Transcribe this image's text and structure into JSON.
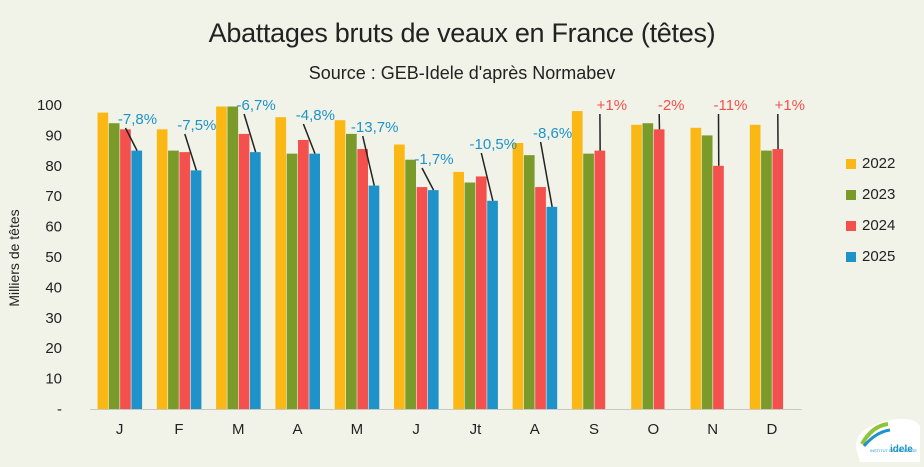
{
  "chart_data": {
    "type": "bar",
    "title": "Abattages bruts de veaux en France (têtes)",
    "subtitle": "Source : GEB-Idele d'après Normabev",
    "ylabel": "Milliers de têtes",
    "xlabel": "",
    "ylim": [
      0,
      100
    ],
    "yticks": [
      "-",
      "10",
      "20",
      "30",
      "40",
      "50",
      "60",
      "70",
      "80",
      "90",
      "100"
    ],
    "categories": [
      "J",
      "F",
      "M",
      "A",
      "M",
      "J",
      "Jt",
      "A",
      "S",
      "O",
      "N",
      "D"
    ],
    "series": [
      {
        "name": "2022",
        "color": "#fbb814",
        "values": [
          97.5,
          92,
          99.5,
          96,
          95,
          87,
          78,
          87.5,
          98,
          93.5,
          92.5,
          93.5
        ]
      },
      {
        "name": "2023",
        "color": "#7a9a2a",
        "values": [
          94,
          85,
          99.5,
          84,
          90.5,
          82,
          74.5,
          83.5,
          84,
          94,
          90,
          85
        ]
      },
      {
        "name": "2024",
        "color": "#f4504e",
        "values": [
          92,
          84.5,
          90.5,
          88.5,
          85.5,
          73,
          76.5,
          73,
          85,
          92,
          80,
          85.5
        ]
      },
      {
        "name": "2025",
        "color": "#1e93c9",
        "values": [
          85,
          78.5,
          84.5,
          84,
          73.5,
          72,
          68.5,
          66.5,
          null,
          null,
          null,
          null
        ]
      }
    ],
    "annotations": [
      {
        "text": "-7,8%",
        "color": "#1e93c9"
      },
      {
        "text": "-7,5%",
        "color": "#1e93c9"
      },
      {
        "text": "-6,7%",
        "color": "#1e93c9"
      },
      {
        "text": "-4,8%",
        "color": "#1e93c9"
      },
      {
        "text": "-13,7%",
        "color": "#1e93c9"
      },
      {
        "text": "-1,7%",
        "color": "#1e93c9"
      },
      {
        "text": "-10,5%",
        "color": "#1e93c9"
      },
      {
        "text": "-8,6%",
        "color": "#1e93c9"
      },
      {
        "text": "+1%",
        "color": "#f4504e"
      },
      {
        "text": "-2%",
        "color": "#f4504e"
      },
      {
        "text": "-11%",
        "color": "#f4504e"
      },
      {
        "text": "+1%",
        "color": "#f4504e"
      }
    ],
    "legend_position": "right",
    "grid": false
  },
  "logo": {
    "text_small": "INSTITUT DE L'ÉLEVAGE",
    "text_brand": "idele"
  }
}
